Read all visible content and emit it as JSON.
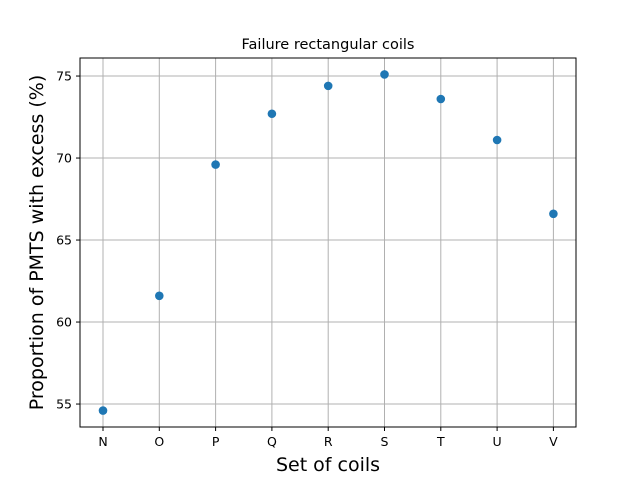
{
  "chart_data": {
    "type": "scatter",
    "title": "Failure rectangular coils",
    "xlabel": "Set of coils",
    "ylabel": "Proportion of PMTS with excess (%)",
    "categories": [
      "N",
      "O",
      "P",
      "Q",
      "R",
      "S",
      "T",
      "U",
      "V"
    ],
    "values": [
      54.6,
      61.6,
      69.6,
      72.7,
      74.4,
      75.1,
      73.6,
      71.1,
      66.6
    ],
    "yticks": [
      55,
      60,
      65,
      70,
      75
    ],
    "ylim": [
      53.6,
      76.1
    ],
    "grid": true,
    "marker_color": "#1f77b4"
  }
}
